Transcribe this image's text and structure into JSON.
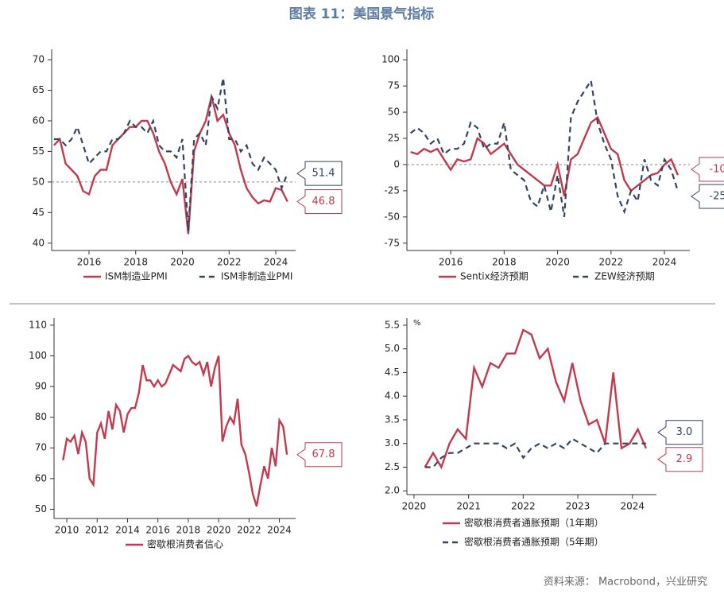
{
  "title": "图表 11：美国景气指标",
  "source": "资料来源： Macrobond，兴业研究",
  "chart_data": [
    {
      "type": "line",
      "legend": "bottom",
      "refline": 50,
      "xlim": [
        2014.4,
        2024.85
      ],
      "xticks": [
        2016,
        2018,
        2020,
        2022,
        2024
      ],
      "ylim": [
        38.8,
        71.7
      ],
      "yticks": [
        40,
        45,
        50,
        55,
        60,
        65,
        70
      ],
      "x": [
        2014.5,
        2014.75,
        2015,
        2015.25,
        2015.5,
        2015.75,
        2016,
        2016.25,
        2016.5,
        2016.75,
        2017,
        2017.25,
        2017.5,
        2017.75,
        2018,
        2018.25,
        2018.5,
        2018.75,
        2019,
        2019.25,
        2019.5,
        2019.75,
        2020,
        2020.25,
        2020.5,
        2020.75,
        2021,
        2021.25,
        2021.5,
        2021.75,
        2022,
        2022.25,
        2022.5,
        2022.75,
        2023,
        2023.25,
        2023.5,
        2023.75,
        2024,
        2024.25,
        2024.5
      ],
      "series": [
        {
          "name": "ISM制造业PMI",
          "color": "#c23a4e",
          "dash": false,
          "values": [
            56,
            57,
            53,
            52,
            51,
            48.5,
            48,
            51,
            52,
            52,
            56,
            57,
            58,
            59,
            59,
            60,
            60,
            58,
            55,
            53,
            50,
            48,
            50.5,
            41.5,
            55,
            58,
            60,
            64,
            60,
            61,
            58,
            56,
            52,
            49,
            47.5,
            46.5,
            47,
            46.8,
            49,
            48.7,
            46.8
          ]
        },
        {
          "name": "ISM非制造业PMI",
          "color": "#34455f",
          "dash": true,
          "values": [
            57,
            57,
            56,
            57,
            59,
            56,
            53,
            54,
            55,
            55,
            57,
            57,
            58,
            60,
            59,
            59,
            58,
            60,
            56,
            55,
            55,
            54,
            57,
            42,
            57,
            58,
            56,
            64,
            62,
            67,
            57,
            57,
            55,
            56,
            53,
            52,
            54,
            53,
            52,
            49,
            51.4
          ]
        }
      ]
    },
    {
      "type": "line",
      "legend": "bottom",
      "refline": 0,
      "xlim": [
        2014.36,
        2024.95
      ],
      "xticks": [
        2016,
        2018,
        2020,
        2022,
        2024
      ],
      "ylim": [
        -82,
        110
      ],
      "yticks": [
        -75,
        -50,
        -25,
        0,
        25,
        50,
        75,
        100
      ],
      "x": [
        2014.5,
        2014.75,
        2015,
        2015.25,
        2015.5,
        2015.75,
        2016,
        2016.25,
        2016.5,
        2016.75,
        2017,
        2017.25,
        2017.5,
        2017.75,
        2018,
        2018.25,
        2018.5,
        2018.75,
        2019,
        2019.25,
        2019.5,
        2019.75,
        2020,
        2020.25,
        2020.5,
        2020.75,
        2021,
        2021.25,
        2021.5,
        2021.75,
        2022,
        2022.25,
        2022.5,
        2022.75,
        2023,
        2023.25,
        2023.5,
        2023.75,
        2024,
        2024.25,
        2024.5
      ],
      "series": [
        {
          "name": "Sentix经济预期",
          "color": "#c23a4e",
          "dash": false,
          "values": [
            12,
            10,
            15,
            12,
            15,
            5,
            -5,
            5,
            3,
            5,
            25,
            20,
            10,
            15,
            20,
            10,
            0,
            -5,
            -10,
            -15,
            -20,
            -20,
            0,
            -30,
            5,
            10,
            25,
            40,
            45,
            30,
            15,
            10,
            -15,
            -25,
            -20,
            -15,
            -10,
            -8,
            0,
            5,
            -10
          ]
        },
        {
          "name": "ZEW经济预期",
          "color": "#34455f",
          "dash": true,
          "values": [
            30,
            35,
            30,
            20,
            25,
            10,
            15,
            15,
            20,
            40,
            35,
            15,
            20,
            20,
            40,
            -5,
            -10,
            -15,
            -35,
            -40,
            -20,
            -45,
            -10,
            -50,
            45,
            60,
            70,
            80,
            40,
            20,
            5,
            -30,
            -45,
            -25,
            -35,
            5,
            -15,
            -20,
            5,
            -5,
            -25
          ]
        }
      ]
    },
    {
      "type": "line",
      "legend": "bottom",
      "xlim": [
        2009.16,
        2025.07
      ],
      "xticks": [
        2010,
        2012,
        2014,
        2016,
        2018,
        2020,
        2022,
        2024
      ],
      "ylim": [
        47,
        112.3
      ],
      "yticks": [
        50,
        60,
        70,
        80,
        90,
        100,
        110
      ],
      "x": [
        2009.75,
        2010,
        2010.25,
        2010.5,
        2010.75,
        2011,
        2011.25,
        2011.5,
        2011.75,
        2012,
        2012.25,
        2012.5,
        2012.75,
        2013,
        2013.25,
        2013.5,
        2013.75,
        2014,
        2014.25,
        2014.5,
        2014.75,
        2015,
        2015.25,
        2015.5,
        2015.75,
        2016,
        2016.25,
        2016.5,
        2016.75,
        2017,
        2017.25,
        2017.5,
        2017.75,
        2018,
        2018.25,
        2018.5,
        2018.75,
        2019,
        2019.25,
        2019.5,
        2019.75,
        2020,
        2020.25,
        2020.5,
        2020.75,
        2021,
        2021.25,
        2021.5,
        2021.75,
        2022,
        2022.25,
        2022.5,
        2022.75,
        2023,
        2023.25,
        2023.5,
        2023.75,
        2024,
        2024.25,
        2024.5
      ],
      "series": [
        {
          "name": "密歇根消费者信心",
          "color": "#c23a4e",
          "dash": false,
          "values": [
            66,
            73,
            72,
            74,
            68,
            75,
            72,
            60,
            58,
            75,
            78,
            73,
            82,
            76,
            84,
            82,
            75,
            81,
            83,
            83,
            88,
            97,
            92,
            92,
            90,
            92,
            90,
            91,
            94,
            97,
            96,
            95,
            99,
            100,
            98,
            97,
            98,
            94,
            98,
            90,
            96,
            100,
            72,
            77,
            80,
            78,
            86,
            71,
            68,
            62,
            55,
            51,
            58,
            64,
            60,
            70,
            64,
            79,
            77,
            67.8
          ]
        }
      ]
    },
    {
      "type": "line",
      "legend": "bottom-column",
      "unit": "%",
      "xlim": [
        2019.87,
        2024.44
      ],
      "xticks": [
        2020,
        2021,
        2022,
        2023,
        2024
      ],
      "ylim": [
        1.92,
        5.65
      ],
      "yticks": [
        {
          "value": 2,
          "label": "2.0"
        },
        {
          "value": 2.5,
          "label": "2.5"
        },
        {
          "value": 3,
          "label": "3.0"
        },
        {
          "value": 3.5,
          "label": "3.5"
        },
        {
          "value": 4,
          "label": "4.0"
        },
        {
          "value": 4.5,
          "label": "4.5"
        },
        {
          "value": 5,
          "label": "5.0"
        },
        {
          "value": 5.5,
          "label": "5.5"
        }
      ],
      "x": [
        2020.2,
        2020.35,
        2020.5,
        2020.65,
        2020.8,
        2020.95,
        2021.1,
        2021.25,
        2021.4,
        2021.55,
        2021.7,
        2021.85,
        2022,
        2022.15,
        2022.3,
        2022.45,
        2022.6,
        2022.75,
        2022.9,
        2023.05,
        2023.2,
        2023.35,
        2023.5,
        2023.65,
        2023.8,
        2023.95,
        2024.1,
        2024.25
      ],
      "series": [
        {
          "name": "密歇根消费者通胀预期（1年期）",
          "color": "#c23a4e",
          "dash": false,
          "end_label": "2.9",
          "values": [
            2.5,
            2.8,
            2.5,
            3.0,
            3.3,
            3.1,
            4.6,
            4.2,
            4.7,
            4.6,
            4.9,
            4.9,
            5.4,
            5.3,
            4.8,
            5.0,
            4.3,
            3.9,
            4.7,
            3.9,
            3.4,
            3.5,
            3.0,
            4.5,
            2.9,
            3.0,
            3.3,
            2.9
          ]
        },
        {
          "name": "密歇根消费者通胀预期（5年期）",
          "color": "#34455f",
          "dash": true,
          "end_label": "3.0",
          "values": [
            2.5,
            2.5,
            2.7,
            2.8,
            2.8,
            2.9,
            3.0,
            3.0,
            3.0,
            3.0,
            2.9,
            3.0,
            2.7,
            2.9,
            3.0,
            2.9,
            3.0,
            2.9,
            3.1,
            3.0,
            2.9,
            2.8,
            3.0,
            3.0,
            3.0,
            3.0,
            3.0,
            3.0
          ]
        }
      ]
    }
  ]
}
